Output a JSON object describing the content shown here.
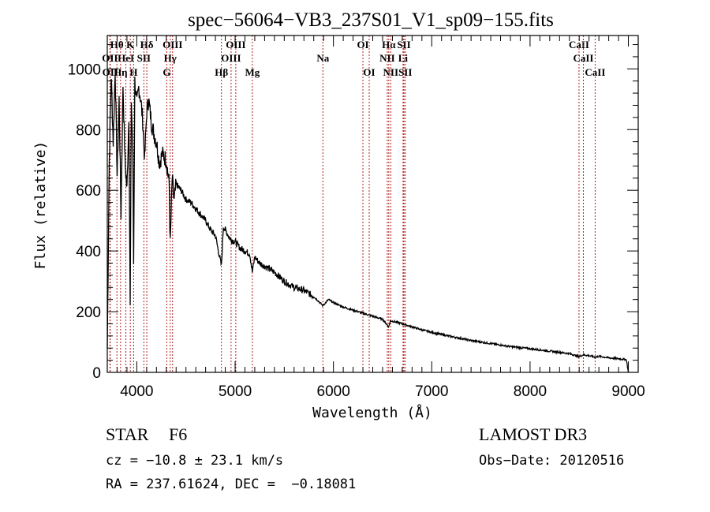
{
  "chart_data": {
    "type": "line",
    "title": "spec−56064−VB3_237S01_V1_sp09−155.fits",
    "xlabel": "Wavelength (Å)",
    "ylabel": "Flux (relative)",
    "xlim": [
      3700,
      9100
    ],
    "ylim": [
      0,
      1110
    ],
    "x_ticks": [
      4000,
      5000,
      6000,
      7000,
      8000,
      9000
    ],
    "x_tick_labels": [
      "4000",
      "5000",
      "6000",
      "7000",
      "8000",
      "9000"
    ],
    "y_ticks": [
      0,
      200,
      400,
      600,
      800,
      1000
    ],
    "y_tick_labels": [
      "0",
      "200",
      "400",
      "600",
      "800",
      "1000"
    ],
    "grid": false,
    "line_color": "#000000",
    "marker_line_color": "#b22222",
    "series": [
      {
        "name": "spectrum",
        "x": [
          3700,
          3720,
          3740,
          3760,
          3780,
          3800,
          3820,
          3840,
          3860,
          3880,
          3900,
          3920,
          3933,
          3945,
          3960,
          3968,
          3980,
          4000,
          4020,
          4040,
          4060,
          4080,
          4101,
          4120,
          4150,
          4180,
          4200,
          4230,
          4260,
          4300,
          4330,
          4340,
          4360,
          4380,
          4400,
          4450,
          4500,
          4550,
          4600,
          4650,
          4700,
          4750,
          4800,
          4861,
          4880,
          4900,
          4950,
          5000,
          5050,
          5100,
          5150,
          5175,
          5200,
          5250,
          5300,
          5400,
          5500,
          5600,
          5700,
          5800,
          5893,
          5950,
          6000,
          6100,
          6200,
          6300,
          6400,
          6500,
          6563,
          6580,
          6650,
          6700,
          6800,
          6900,
          7000,
          7200,
          7400,
          7600,
          7800,
          8000,
          8200,
          8400,
          8498,
          8542,
          8600,
          8662,
          8700,
          8800,
          8900,
          8980,
          9000
        ],
        "y": [
          80,
          700,
          980,
          760,
          1000,
          650,
          900,
          520,
          950,
          700,
          600,
          850,
          210,
          900,
          700,
          360,
          960,
          880,
          940,
          900,
          830,
          700,
          860,
          900,
          820,
          780,
          760,
          690,
          720,
          700,
          620,
          420,
          640,
          560,
          620,
          600,
          570,
          560,
          540,
          520,
          500,
          470,
          450,
          350,
          480,
          470,
          440,
          430,
          410,
          400,
          390,
          330,
          380,
          360,
          350,
          330,
          300,
          280,
          270,
          250,
          220,
          240,
          230,
          215,
          205,
          195,
          185,
          175,
          150,
          170,
          165,
          160,
          150,
          140,
          132,
          118,
          105,
          95,
          85,
          78,
          70,
          62,
          52,
          58,
          55,
          50,
          53,
          48,
          45,
          42,
          0
        ]
      }
    ],
    "line_markers": [
      {
        "label": "Hθ",
        "wavelength": 3798,
        "row": 1
      },
      {
        "label": "K",
        "wavelength": 3934,
        "row": 1
      },
      {
        "label": "Hδ",
        "wavelength": 4102,
        "row": 1
      },
      {
        "label": "OIII",
        "wavelength": 4364,
        "row": 1
      },
      {
        "label": "OIII",
        "wavelength": 5007,
        "row": 1
      },
      {
        "label": "OI",
        "wavelength": 6300,
        "row": 1
      },
      {
        "label": "Hα",
        "wavelength": 6563,
        "row": 1
      },
      {
        "label": "SII",
        "wavelength": 6717,
        "row": 1
      },
      {
        "label": "CaII",
        "wavelength": 8498,
        "row": 1
      },
      {
        "label": "OII",
        "wavelength": 3727,
        "row": 2
      },
      {
        "label": "HeI",
        "wavelength": 3889,
        "row": 2
      },
      {
        "label": "SII",
        "wavelength": 4072,
        "row": 2
      },
      {
        "label": "Hγ",
        "wavelength": 4340,
        "row": 2
      },
      {
        "label": "OIII",
        "wavelength": 4959,
        "row": 2
      },
      {
        "label": "Na",
        "wavelength": 5893,
        "row": 2
      },
      {
        "label": "NII",
        "wavelength": 6548,
        "row": 2
      },
      {
        "label": "Li",
        "wavelength": 6708,
        "row": 2
      },
      {
        "label": "CaII",
        "wavelength": 8542,
        "row": 2
      },
      {
        "label": "OII",
        "wavelength": 3730,
        "row": 3
      },
      {
        "label": "Hη",
        "wavelength": 3835,
        "row": 3
      },
      {
        "label": "H",
        "wavelength": 3968,
        "row": 3
      },
      {
        "label": "G",
        "wavelength": 4305,
        "row": 3
      },
      {
        "label": "Hβ",
        "wavelength": 4861,
        "row": 3
      },
      {
        "label": "Mg",
        "wavelength": 5175,
        "row": 3
      },
      {
        "label": "OI",
        "wavelength": 6364,
        "row": 3
      },
      {
        "label": "NII",
        "wavelength": 6583,
        "row": 3
      },
      {
        "label": "SII",
        "wavelength": 6731,
        "row": 3
      },
      {
        "label": "CaII",
        "wavelength": 8662,
        "row": 3
      }
    ]
  },
  "info": {
    "object_class": "STAR",
    "subclass": "F6",
    "survey": "LAMOST DR3",
    "redshift": "cz = −10.8 ± 23.1 km/s",
    "obs_date": "Obs−Date: 20120516",
    "coords": "RA = 237.61624, DEC =  −0.18081"
  }
}
